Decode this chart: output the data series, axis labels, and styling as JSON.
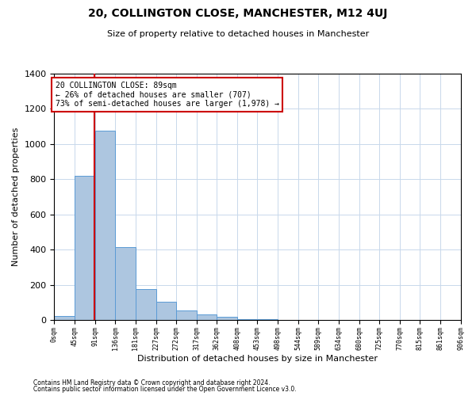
{
  "title": "20, COLLINGTON CLOSE, MANCHESTER, M12 4UJ",
  "subtitle": "Size of property relative to detached houses in Manchester",
  "xlabel": "Distribution of detached houses by size in Manchester",
  "ylabel": "Number of detached properties",
  "property_size": 89,
  "annotation_line1": "20 COLLINGTON CLOSE: 89sqm",
  "annotation_line2": "← 26% of detached houses are smaller (707)",
  "annotation_line3": "73% of semi-detached houses are larger (1,978) →",
  "bin_edges": [
    0,
    45,
    91,
    136,
    181,
    227,
    272,
    317,
    362,
    408,
    453,
    498,
    544,
    589,
    634,
    680,
    725,
    770,
    815,
    861,
    906
  ],
  "bin_counts": [
    25,
    820,
    1075,
    415,
    175,
    105,
    55,
    35,
    20,
    8,
    5,
    3,
    2,
    2,
    1,
    1,
    1,
    1,
    0,
    0
  ],
  "bar_color": "#adc6e0",
  "bar_edge_color": "#5b9bd5",
  "red_line_color": "#cc0000",
  "annotation_box_color": "#cc0000",
  "grid_color": "#c8d8eb",
  "background_color": "#ffffff",
  "ylim": [
    0,
    1400
  ],
  "footnote1": "Contains HM Land Registry data © Crown copyright and database right 2024.",
  "footnote2": "Contains public sector information licensed under the Open Government Licence v3.0."
}
